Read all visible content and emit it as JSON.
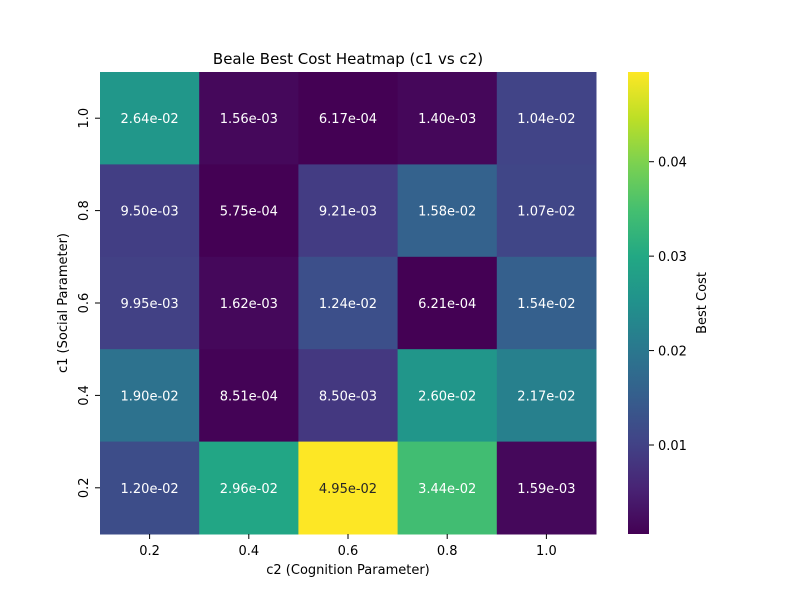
{
  "chart_data": {
    "type": "heatmap",
    "title": "Beale Best Cost Heatmap (c1 vs c2)",
    "xlabel": "c2 (Cognition Parameter)",
    "ylabel": "c1 (Social Parameter)",
    "x_ticks": [
      "0.2",
      "0.4",
      "0.6",
      "0.8",
      "1.0"
    ],
    "y_ticks": [
      "1.0",
      "0.8",
      "0.6",
      "0.4",
      "0.2"
    ],
    "values": [
      [
        0.0264,
        0.00156,
        0.000617,
        0.0014,
        0.0104
      ],
      [
        0.0095,
        0.000575,
        0.00921,
        0.0158,
        0.0107
      ],
      [
        0.00995,
        0.00162,
        0.0124,
        0.000621,
        0.0154
      ],
      [
        0.019,
        0.000851,
        0.0085,
        0.026,
        0.0217
      ],
      [
        0.012,
        0.0296,
        0.0495,
        0.0344,
        0.00159
      ]
    ],
    "cell_labels": [
      [
        "2.64e-02",
        "1.56e-03",
        "6.17e-04",
        "1.40e-03",
        "1.04e-02"
      ],
      [
        "9.50e-03",
        "5.75e-04",
        "9.21e-03",
        "1.58e-02",
        "1.07e-02"
      ],
      [
        "9.95e-03",
        "1.62e-03",
        "1.24e-02",
        "6.21e-04",
        "1.54e-02"
      ],
      [
        "1.90e-02",
        "8.51e-04",
        "8.50e-03",
        "2.60e-02",
        "2.17e-02"
      ],
      [
        "1.20e-02",
        "2.96e-02",
        "4.95e-02",
        "3.44e-02",
        "1.59e-03"
      ]
    ],
    "colorbar": {
      "label": "Best Cost",
      "colormap": "viridis",
      "vmin": 0.000575,
      "vmax": 0.0495,
      "ticks": [
        0.01,
        0.02,
        0.03,
        0.04
      ],
      "tick_labels": [
        "0.01",
        "0.02",
        "0.03",
        "0.04"
      ]
    }
  }
}
